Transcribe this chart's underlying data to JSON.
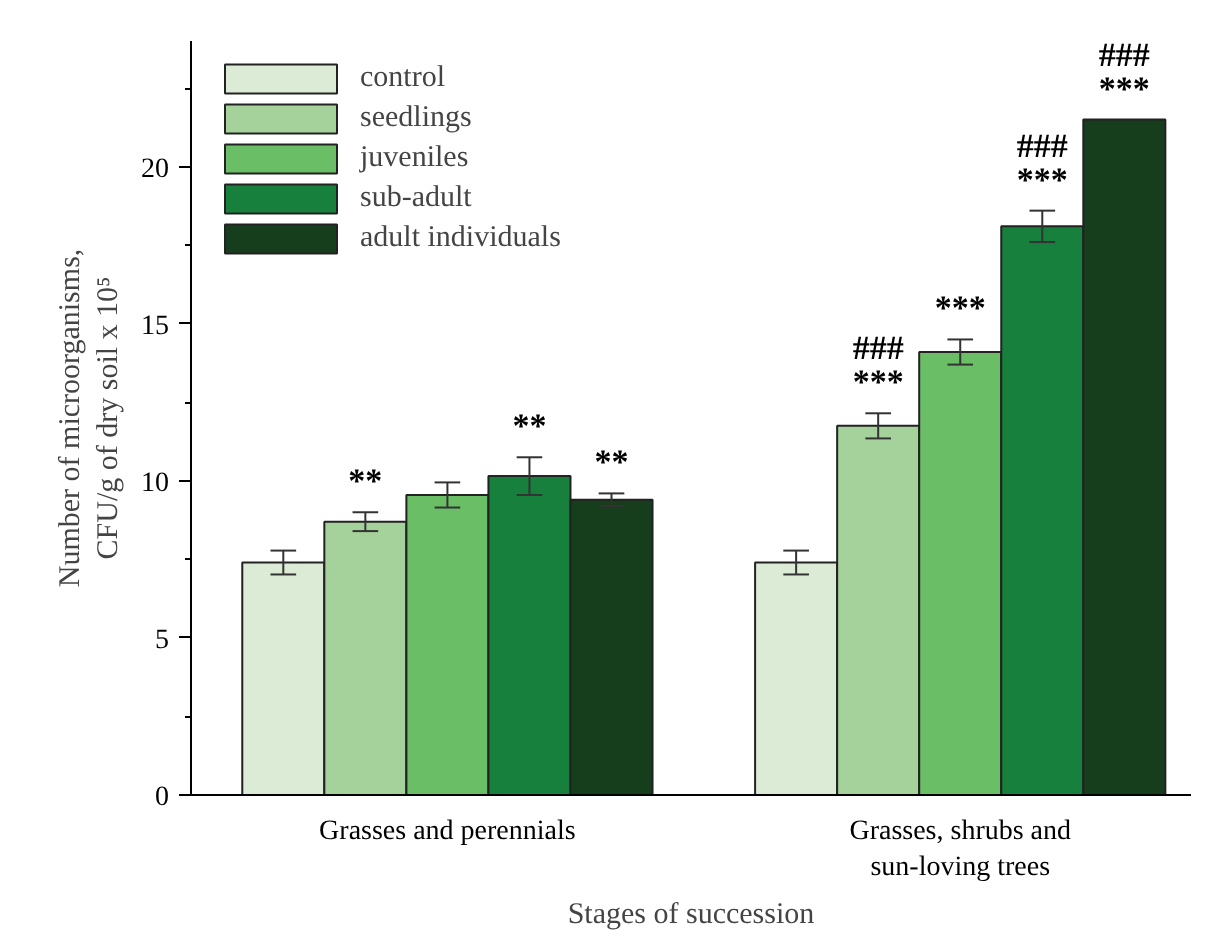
{
  "chart_data": {
    "type": "bar",
    "categories": [
      "Grasses and perennials",
      "Grasses, shrubs and\nsun-loving trees"
    ],
    "xlabel": "Stages of succession",
    "ylabel": "Number of microorganisms,\nCFU/g of dry soil x 10⁵",
    "ylim": [
      0,
      24
    ],
    "yticks": [
      0,
      5,
      10,
      15,
      20
    ],
    "legend": "top left",
    "grid": false,
    "series": [
      {
        "name": "control",
        "color": "#dcebd6",
        "values": [
          7.4,
          7.4
        ],
        "errors": [
          0.38,
          0.38
        ]
      },
      {
        "name": "seedlings",
        "color": "#a5d29b",
        "values": [
          8.7,
          11.75
        ],
        "errors": [
          0.3,
          0.4
        ]
      },
      {
        "name": "juveniles",
        "color": "#6abf66",
        "values": [
          9.55,
          14.1
        ],
        "errors": [
          0.4,
          0.4
        ]
      },
      {
        "name": "sub-adult",
        "color": "#17803d",
        "values": [
          10.15,
          18.1
        ],
        "errors": [
          0.6,
          0.5
        ]
      },
      {
        "name": "adult individuals",
        "color": "#163d1c",
        "values": [
          9.4,
          21.5
        ],
        "errors": [
          0.2,
          null
        ]
      }
    ],
    "annotations": [
      "**",
      "**",
      "**",
      "***",
      "###",
      "***",
      "***",
      "###",
      "***",
      "###"
    ]
  }
}
